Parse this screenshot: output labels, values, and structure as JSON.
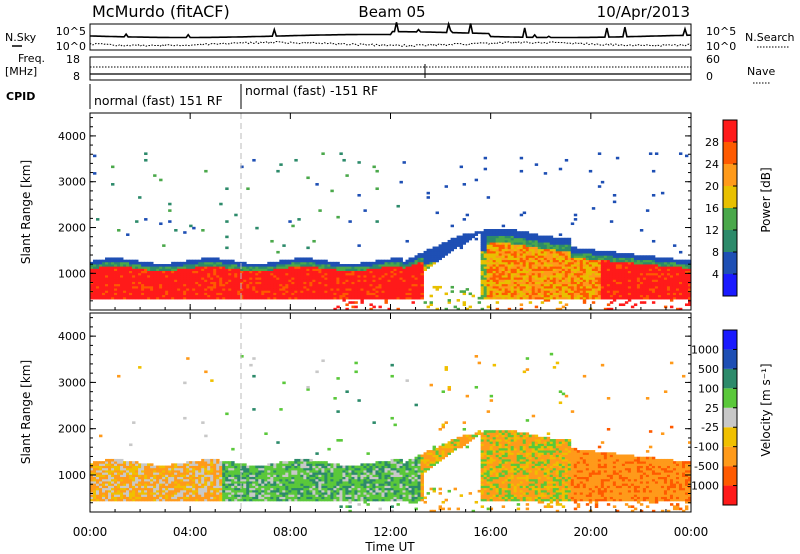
{
  "header": {
    "station": "McMurdo (fitACF)",
    "beam": "Beam 05",
    "date": "10/Apr/2013"
  },
  "top_panel": {
    "left_label": "N.Sky",
    "right_label": "N.Search",
    "ticks_left": [
      "10^5",
      "10^0"
    ],
    "ticks_right": [
      "10^5",
      "10^0"
    ]
  },
  "freq_panel": {
    "label_line1": "Freq.",
    "label_line2": "[MHz]",
    "ticks_left": [
      "18",
      "8"
    ],
    "right_label": "Nave",
    "ticks_right": [
      "60",
      "0"
    ]
  },
  "cpid_panel": {
    "label": "CPID",
    "segments": [
      "normal (fast) 151 RF",
      "normal (fast) -151 RF"
    ]
  },
  "colors": {
    "power": [
      "#1a1aff",
      "#1e4fb4",
      "#2c8a6a",
      "#4aa84a",
      "#e8c000",
      "#ff9a1a",
      "#ff5a00",
      "#ff1a1a"
    ],
    "velocity": [
      "#ff1a1a",
      "#ff5a00",
      "#ff9a1a",
      "#f0c000",
      "#c8c8c8",
      "#5ac83a",
      "#2c8a6a",
      "#1e4fb4",
      "#1a1aff"
    ]
  },
  "chart_data": [
    {
      "type": "heatmap",
      "name": "power",
      "xlabel": "",
      "ylabel": "Slant Range [km]",
      "x_ticks": [
        "00:00",
        "04:00",
        "08:00",
        "12:00",
        "16:00",
        "20:00",
        "00:00"
      ],
      "y_ticks": [
        "1000",
        "2000",
        "3000",
        "4000"
      ],
      "ylim": [
        200,
        4500
      ],
      "colorbar_label": "Power [dB]",
      "colorbar_ticks": [
        "4",
        "8",
        "12",
        "16",
        "20",
        "24",
        "28"
      ]
    },
    {
      "type": "heatmap",
      "name": "velocity",
      "xlabel": "Time UT",
      "ylabel": "Slant Range [km]",
      "x_ticks": [
        "00:00",
        "04:00",
        "08:00",
        "12:00",
        "16:00",
        "20:00",
        "00:00"
      ],
      "y_ticks": [
        "1000",
        "2000",
        "3000",
        "4000"
      ],
      "ylim": [
        200,
        4500
      ],
      "colorbar_label": "Velocity [m s⁻¹]",
      "colorbar_ticks": [
        "1000",
        "500",
        "100",
        "25",
        "-25",
        "-100",
        "-500",
        "-1000"
      ]
    }
  ]
}
